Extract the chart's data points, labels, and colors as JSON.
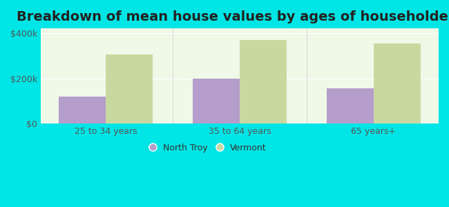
{
  "title": "Breakdown of mean house values by ages of householders",
  "categories": [
    "25 to 34 years",
    "35 to 64 years",
    "65 years+"
  ],
  "series": [
    {
      "name": "North Troy",
      "values": [
        120000,
        200000,
        155000
      ],
      "color": "#b59dcc"
    },
    {
      "name": "Vermont",
      "values": [
        305000,
        370000,
        355000
      ],
      "color": "#c8d9a0"
    }
  ],
  "ylim": [
    0,
    420000
  ],
  "yticks": [
    0,
    200000,
    400000
  ],
  "ytick_labels": [
    "$0",
    "$200k",
    "$400k"
  ],
  "background_color": "#00e5e5",
  "plot_bg_color": "#f0f8e8",
  "title_fontsize": 14,
  "tick_fontsize": 9,
  "legend_fontsize": 9,
  "bar_width": 0.35
}
